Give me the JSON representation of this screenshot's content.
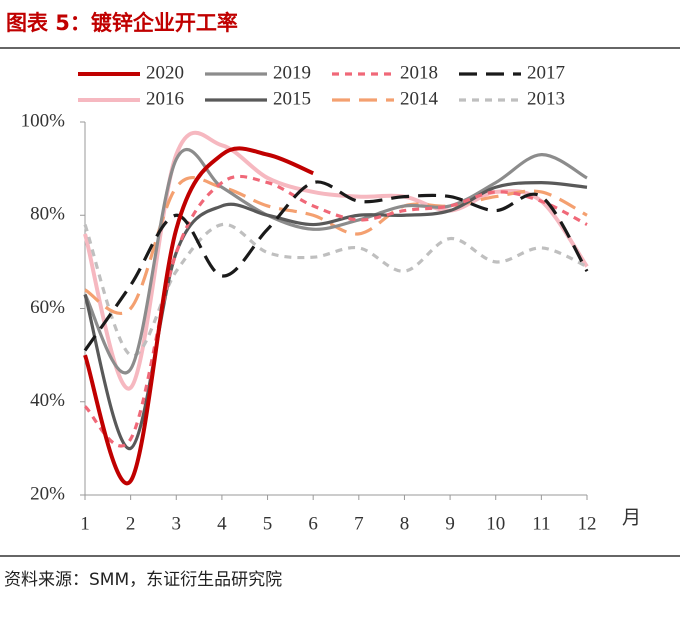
{
  "chart_data": {
    "type": "line",
    "title": "图表 5：镀锌企业开工率",
    "source": "资料来源：SMM，东证衍生品研究院",
    "x_label": "月",
    "x": [
      1,
      2,
      3,
      4,
      5,
      6,
      7,
      8,
      9,
      10,
      11,
      12
    ],
    "xlim": [
      1,
      12
    ],
    "xticks": [
      1,
      2,
      3,
      4,
      5,
      6,
      7,
      8,
      9,
      10,
      11,
      12
    ],
    "ylim": [
      20,
      100
    ],
    "yticks": [
      {
        "value": 20,
        "label": "20%"
      },
      {
        "value": 40,
        "label": "40%"
      },
      {
        "value": 60,
        "label": "60%"
      },
      {
        "value": 80,
        "label": "80%"
      },
      {
        "value": 100,
        "label": "100%"
      }
    ],
    "series": [
      {
        "name": "2020",
        "color": "#c00000",
        "dash": "solid",
        "values": [
          50,
          23,
          77,
          93,
          93,
          89,
          null,
          null,
          null,
          null,
          null,
          null
        ]
      },
      {
        "name": "2019",
        "color": "#8c8c8c",
        "dash": "solid",
        "values": [
          63,
          47,
          92,
          86,
          80,
          77,
          79,
          82,
          82,
          87,
          93,
          88
        ]
      },
      {
        "name": "2018",
        "color": "#f06878",
        "dash": "dashed",
        "values": [
          39,
          32,
          72,
          87,
          87,
          82,
          79,
          81,
          82,
          85,
          83,
          78
        ]
      },
      {
        "name": "2017",
        "color": "#1a1a1a",
        "dash": "long-dash",
        "values": [
          51,
          65,
          80,
          67,
          77,
          87,
          83,
          84,
          84,
          81,
          84,
          68
        ]
      },
      {
        "name": "2016",
        "color": "#f6b8c0",
        "dash": "solid",
        "values": [
          76,
          43,
          93,
          95,
          88,
          85,
          84,
          84,
          81,
          85,
          83,
          69
        ]
      },
      {
        "name": "2015",
        "color": "#595959",
        "dash": "solid",
        "values": [
          63,
          30,
          72,
          82,
          80,
          78,
          80,
          80,
          81,
          86,
          87,
          86
        ]
      },
      {
        "name": "2014",
        "color": "#f4a070",
        "dash": "long-dash",
        "values": [
          64,
          60,
          86,
          86,
          82,
          80,
          76,
          82,
          82,
          84,
          85,
          80
        ]
      },
      {
        "name": "2013",
        "color": "#bfbfbf",
        "dash": "dashed",
        "values": [
          78,
          50,
          68,
          78,
          72,
          71,
          73,
          68,
          75,
          70,
          73,
          69
        ]
      }
    ]
  }
}
